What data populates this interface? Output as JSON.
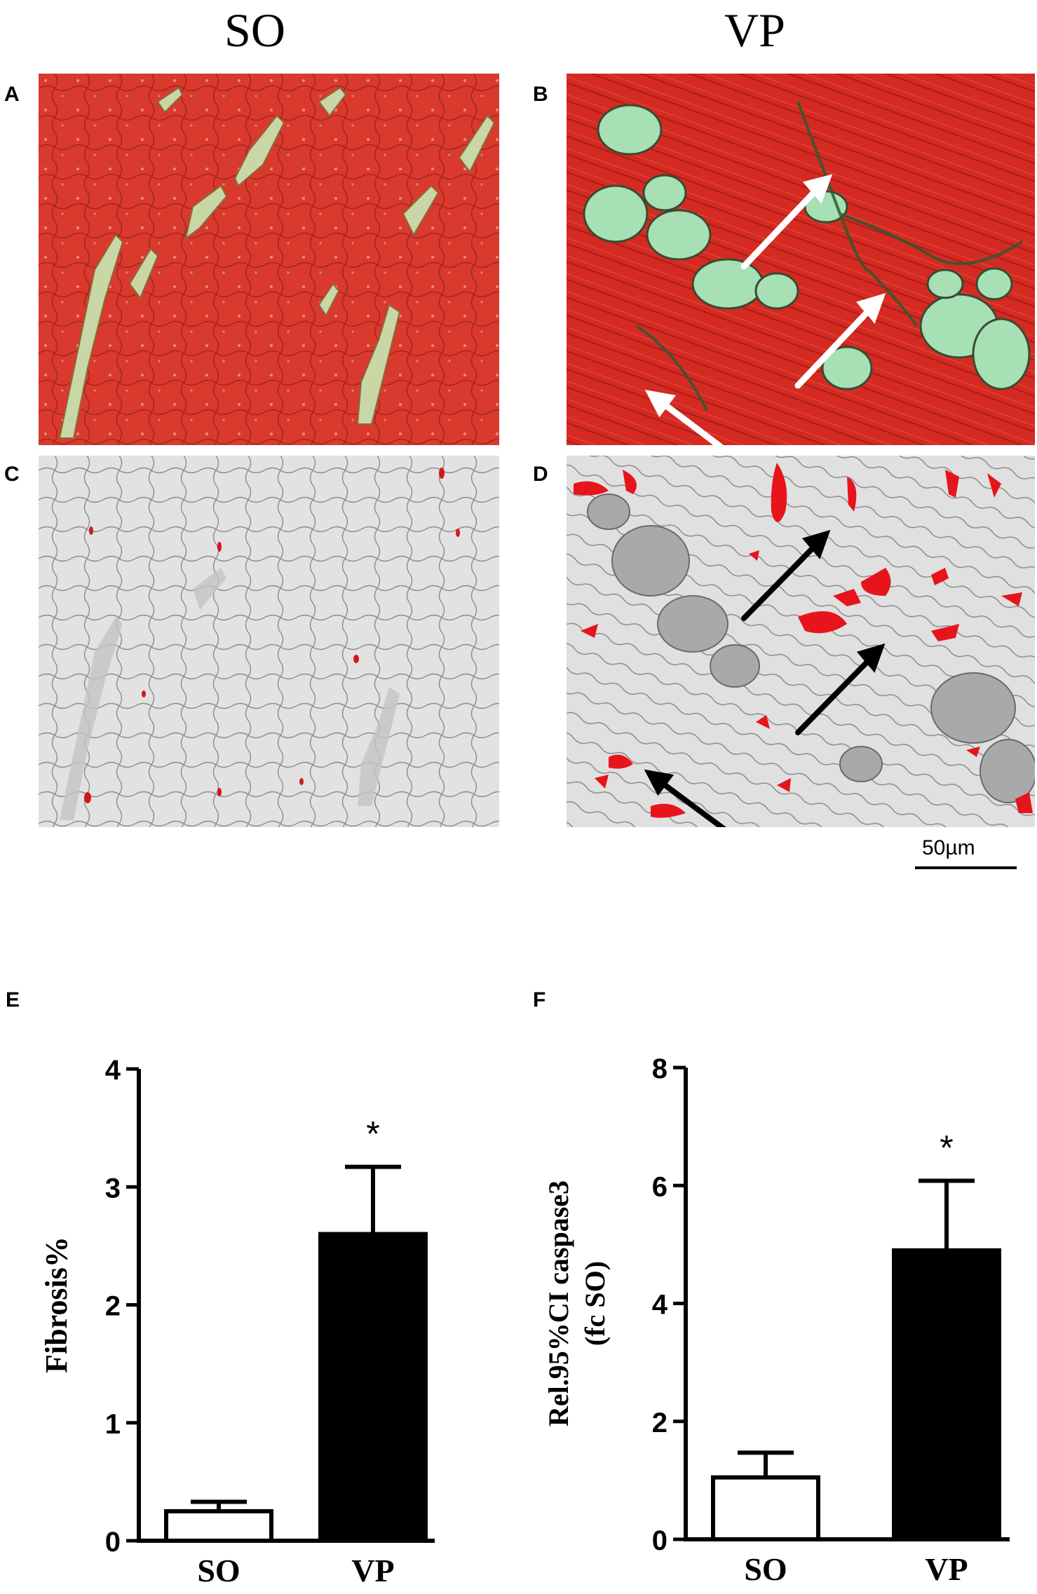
{
  "columns": {
    "left": "SO",
    "right": "VP"
  },
  "panels": {
    "a": "A",
    "b": "B",
    "c": "C",
    "d": "D",
    "e": "E",
    "f": "F"
  },
  "scale_bar": {
    "label": "50µm"
  },
  "colors": {
    "muscle_red": "#d8322a",
    "collagen_green": "#a6e0b4",
    "fibrosis_red": "#e8141c",
    "grey_background": "#dcdcdc",
    "bar_fill_vp": "#000000",
    "bar_fill_so": "#ffffff"
  },
  "icons": [
    "white-arrow-icon",
    "black-arrow-icon"
  ],
  "chart_data": [
    {
      "type": "bar",
      "panel": "E",
      "categories": [
        "SO",
        "VP"
      ],
      "values": [
        0.25,
        2.6
      ],
      "errors": [
        0.08,
        0.57
      ],
      "fills": [
        "white",
        "black"
      ],
      "significance": [
        "",
        "*"
      ],
      "ylabel": "Fibrosis%",
      "ylim": [
        0,
        4
      ],
      "yticks": [
        0,
        1,
        2,
        3,
        4
      ],
      "grid": false
    },
    {
      "type": "bar",
      "panel": "F",
      "categories": [
        "SO",
        "VP"
      ],
      "values": [
        1.05,
        4.9
      ],
      "errors": [
        0.42,
        1.18
      ],
      "fills": [
        "white",
        "black"
      ],
      "significance": [
        "",
        "*"
      ],
      "ylabel": "Rel.95%CI caspase3",
      "ylabel2": "(fc SO)",
      "ylim": [
        0,
        8
      ],
      "yticks": [
        0,
        2,
        4,
        6,
        8
      ],
      "grid": false
    }
  ]
}
